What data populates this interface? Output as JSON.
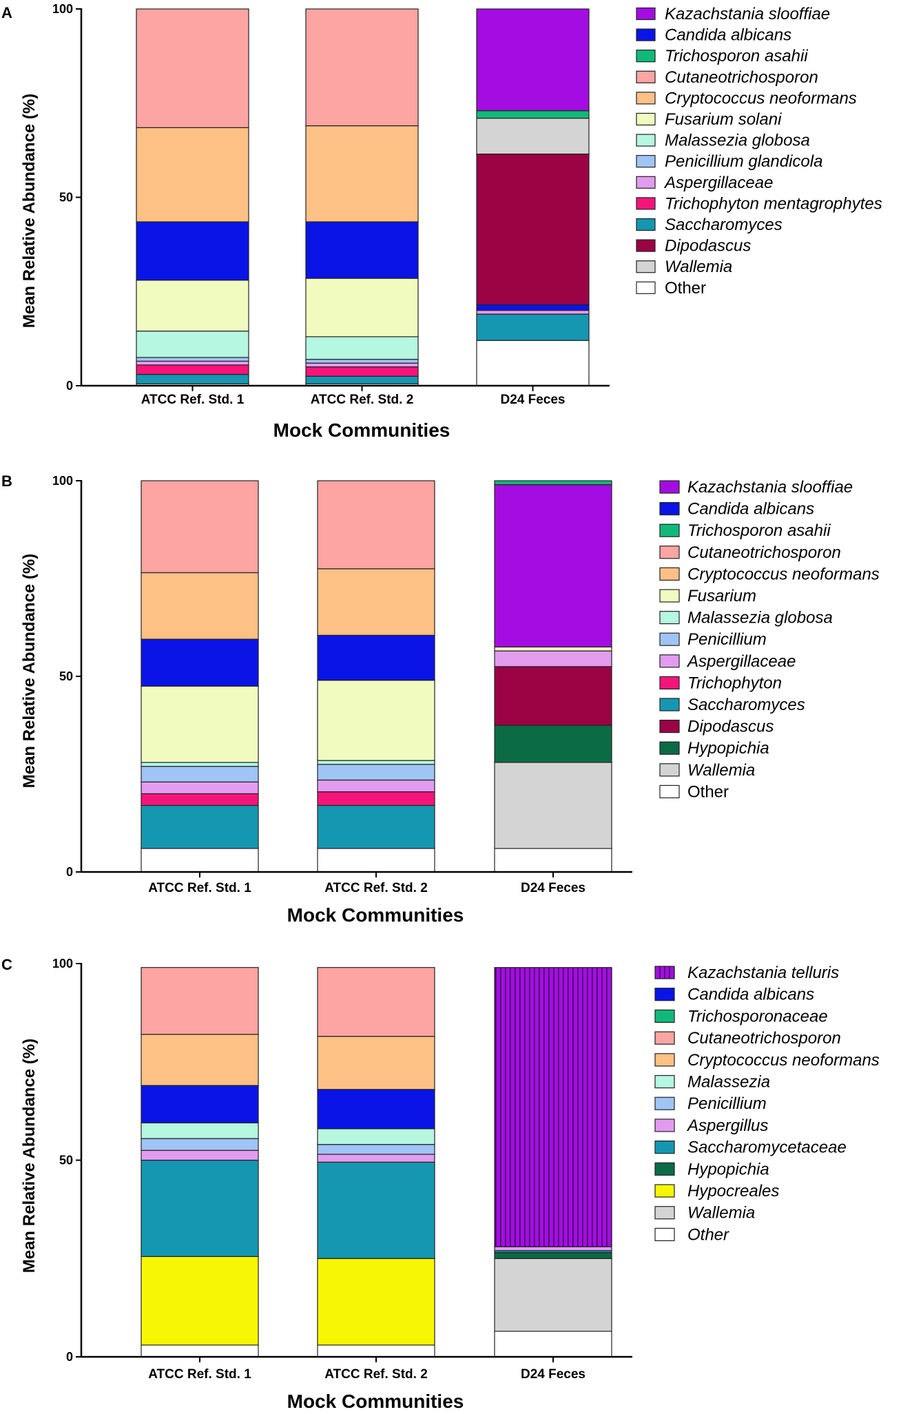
{
  "patterns": [
    {
      "name": "vstripe",
      "fg": "#3f0a59",
      "bg": "#a40de2"
    }
  ],
  "chart_data": [
    {
      "type": "bar",
      "stacked": true,
      "panel": "A",
      "xlabel": "Mock Communities",
      "ylabel": "Mean Relative Abundance (%)",
      "ylim": [
        0,
        100
      ],
      "yticks": [
        0,
        50,
        100
      ],
      "categories": [
        "ATCC Ref. Std. 1",
        "ATCC Ref. Std. 2",
        "D24 Feces"
      ],
      "legend": [
        {
          "name": "Kazachstania slooffiae",
          "color": "#a40de2",
          "italic": true
        },
        {
          "name": "Candida albicans",
          "color": "#0a14e6",
          "italic": true
        },
        {
          "name": "Trichosporon asahii",
          "color": "#10b97a",
          "italic": true
        },
        {
          "name": "Cutaneotrichosporon",
          "color": "#fca5a3",
          "italic": true
        },
        {
          "name": "Cryptococcus neoformans",
          "color": "#fdc185",
          "italic": true
        },
        {
          "name": "Fusarium solani",
          "color": "#f2fbbf",
          "italic": true
        },
        {
          "name": "Malassezia globosa",
          "color": "#b5f7e1",
          "italic": true
        },
        {
          "name": "Penicillium glandicola",
          "color": "#9fc4f6",
          "italic": true
        },
        {
          "name": "Aspergillaceae",
          "color": "#e29cef",
          "italic": true
        },
        {
          "name": "Trichophyton mentagrophytes",
          "color": "#f5157a",
          "italic": true
        },
        {
          "name": "Saccharomyces",
          "color": "#1597b1",
          "italic": true
        },
        {
          "name": "Dipodascus",
          "color": "#9b0345",
          "italic": true
        },
        {
          "name": "Wallemia",
          "color": "#d4d4d4",
          "italic": true
        },
        {
          "name": "Other",
          "color": "#ffffff",
          "italic": false
        }
      ],
      "series": [
        {
          "name": "Other",
          "values": [
            0.5,
            0.5,
            12
          ]
        },
        {
          "name": "Saccharomyces",
          "values": [
            2.5,
            2,
            7
          ]
        },
        {
          "name": "Trichophyton mentagrophytes",
          "values": [
            2.5,
            2.5,
            0
          ]
        },
        {
          "name": "Aspergillaceae",
          "values": [
            1,
            1,
            1
          ]
        },
        {
          "name": "Penicillium glandicola",
          "values": [
            1,
            1,
            0
          ]
        },
        {
          "name": "Malassezia globosa",
          "values": [
            7,
            6,
            0
          ]
        },
        {
          "name": "Fusarium solani",
          "values": [
            13.5,
            15.5,
            0
          ]
        },
        {
          "name": "Candida albicans",
          "values": [
            15.5,
            15,
            1.5
          ]
        },
        {
          "name": "Cryptococcus neoformans",
          "values": [
            25,
            25.5,
            0
          ]
        },
        {
          "name": "Cutaneotrichosporon",
          "values": [
            31.5,
            31,
            0
          ]
        },
        {
          "name": "Dipodascus",
          "values": [
            0,
            0,
            40
          ]
        },
        {
          "name": "Wallemia",
          "values": [
            0,
            0,
            9.5
          ]
        },
        {
          "name": "Trichosporon asahii",
          "values": [
            0,
            0,
            2
          ]
        },
        {
          "name": "Kazachstania slooffiae",
          "values": [
            0,
            0,
            27
          ]
        }
      ]
    },
    {
      "type": "bar",
      "stacked": true,
      "panel": "B",
      "xlabel": "Mock Communities",
      "ylabel": "Mean Relative Abundance (%)",
      "ylim": [
        0,
        100
      ],
      "yticks": [
        0,
        50,
        100
      ],
      "categories": [
        "ATCC Ref. Std. 1",
        "ATCC Ref. Std. 2",
        "D24 Feces"
      ],
      "legend": [
        {
          "name": "Kazachstania slooffiae",
          "color": "#a40de2",
          "italic": true
        },
        {
          "name": "Candida albicans",
          "color": "#0a14e6",
          "italic": true
        },
        {
          "name": "Trichosporon asahii",
          "color": "#10b97a",
          "italic": true
        },
        {
          "name": "Cutaneotrichosporon",
          "color": "#fca5a3",
          "italic": true
        },
        {
          "name": "Cryptococcus neoformans",
          "color": "#fdc185",
          "italic": true
        },
        {
          "name": "Fusarium",
          "color": "#f2fbbf",
          "italic": true
        },
        {
          "name": "Malassezia globosa",
          "color": "#b5f7e1",
          "italic": true
        },
        {
          "name": "Penicillium",
          "color": "#9fc4f6",
          "italic": true
        },
        {
          "name": "Aspergillaceae",
          "color": "#e29cef",
          "italic": true
        },
        {
          "name": "Trichophyton",
          "color": "#f5157a",
          "italic": true
        },
        {
          "name": "Saccharomyces",
          "color": "#1597b1",
          "italic": true
        },
        {
          "name": "Dipodascus",
          "color": "#9b0345",
          "italic": true
        },
        {
          "name": "Hypopichia",
          "color": "#0b6b45",
          "italic": true
        },
        {
          "name": "Wallemia",
          "color": "#d4d4d4",
          "italic": true
        },
        {
          "name": "Other",
          "color": "#ffffff",
          "italic": false
        }
      ],
      "series": [
        {
          "name": "Other",
          "values": [
            6,
            6,
            6
          ]
        },
        {
          "name": "Saccharomyces",
          "values": [
            11,
            11,
            0
          ]
        },
        {
          "name": "Trichophyton",
          "values": [
            3,
            3.5,
            0
          ]
        },
        {
          "name": "Aspergillaceae",
          "values": [
            3,
            3,
            0
          ]
        },
        {
          "name": "Penicillium",
          "values": [
            4,
            4,
            0
          ]
        },
        {
          "name": "Malassezia globosa",
          "values": [
            1,
            1,
            0
          ]
        },
        {
          "name": "Fusarium",
          "values": [
            19.5,
            20.5,
            0
          ]
        },
        {
          "name": "Candida albicans",
          "values": [
            12,
            11.5,
            0
          ]
        },
        {
          "name": "Cryptococcus neoformans",
          "values": [
            17,
            17,
            0
          ]
        },
        {
          "name": "Cutaneotrichosporon",
          "values": [
            23.5,
            22.5,
            0
          ]
        },
        {
          "name": "Wallemia",
          "values": [
            0,
            0,
            22
          ]
        },
        {
          "name": "Hypopichia",
          "values": [
            0,
            0,
            9.5
          ]
        },
        {
          "name": "Dipodascus",
          "values": [
            0,
            0,
            15
          ]
        },
        {
          "name": "Aspergillaceae",
          "values": [
            0,
            0,
            4
          ]
        },
        {
          "name": "Fusarium",
          "values": [
            0,
            0,
            1
          ]
        },
        {
          "name": "Kazachstania slooffiae",
          "values": [
            0,
            0,
            41.5
          ]
        },
        {
          "name": "Trichosporon asahii",
          "values": [
            0,
            0,
            1
          ]
        }
      ]
    },
    {
      "type": "bar",
      "stacked": true,
      "panel": "C",
      "xlabel": "Mock Communities",
      "ylabel": "Mean Relative Abundance (%)",
      "ylim": [
        0,
        100
      ],
      "yticks": [
        0,
        50,
        100
      ],
      "categories": [
        "ATCC Ref. Std. 1",
        "ATCC Ref. Std. 2",
        "D24 Feces"
      ],
      "legend": [
        {
          "name": "Kazachstania telluris",
          "color": "#a40de2",
          "pattern": "vstripe",
          "italic": true
        },
        {
          "name": "Candida albicans",
          "color": "#0a14e6",
          "italic": true
        },
        {
          "name": "Trichosporonaceae",
          "color": "#10b97a",
          "italic": true
        },
        {
          "name": "Cutaneotrichosporon",
          "color": "#fca5a3",
          "italic": true
        },
        {
          "name": "Cryptococcus neoformans",
          "color": "#fdc185",
          "italic": true
        },
        {
          "name": "Malassezia",
          "color": "#b5f7e1",
          "italic": true
        },
        {
          "name": "Penicillium",
          "color": "#9fc4f6",
          "italic": true
        },
        {
          "name": "Aspergillus",
          "color": "#e29cef",
          "italic": true
        },
        {
          "name": "Saccharomycetaceae",
          "color": "#1597b1",
          "italic": true
        },
        {
          "name": "Hypopichia",
          "color": "#0b6b45",
          "italic": true
        },
        {
          "name": "Hypocreales",
          "color": "#f7f705",
          "italic": true
        },
        {
          "name": "Wallemia",
          "color": "#d4d4d4",
          "italic": true
        },
        {
          "name": "Other",
          "color": "#ffffff",
          "italic": true
        }
      ],
      "series": [
        {
          "name": "Other",
          "values": [
            3,
            3,
            6.5
          ]
        },
        {
          "name": "Hypocreales",
          "values": [
            22.5,
            22,
            0
          ]
        },
        {
          "name": "Saccharomycetaceae",
          "values": [
            24.5,
            24.5,
            0
          ]
        },
        {
          "name": "Aspergillus",
          "values": [
            2.5,
            2,
            0
          ]
        },
        {
          "name": "Penicillium",
          "values": [
            3,
            2.5,
            0
          ]
        },
        {
          "name": "Malassezia",
          "values": [
            4,
            4,
            0
          ]
        },
        {
          "name": "Candida albicans",
          "values": [
            9.5,
            10,
            0
          ]
        },
        {
          "name": "Cryptococcus neoformans",
          "values": [
            13,
            13.5,
            0
          ]
        },
        {
          "name": "Cutaneotrichosporon",
          "values": [
            17,
            17.5,
            0
          ]
        },
        {
          "name": "Wallemia",
          "values": [
            0,
            0,
            18.5
          ]
        },
        {
          "name": "Hypopichia",
          "values": [
            0,
            0,
            1.5
          ]
        },
        {
          "name": "Saccharomycetaceae",
          "values": [
            0,
            0,
            0.5
          ]
        },
        {
          "name": "Aspergillus",
          "values": [
            0,
            0,
            1
          ]
        },
        {
          "name": "Kazachstania telluris",
          "values": [
            0,
            0,
            71
          ]
        }
      ]
    }
  ]
}
